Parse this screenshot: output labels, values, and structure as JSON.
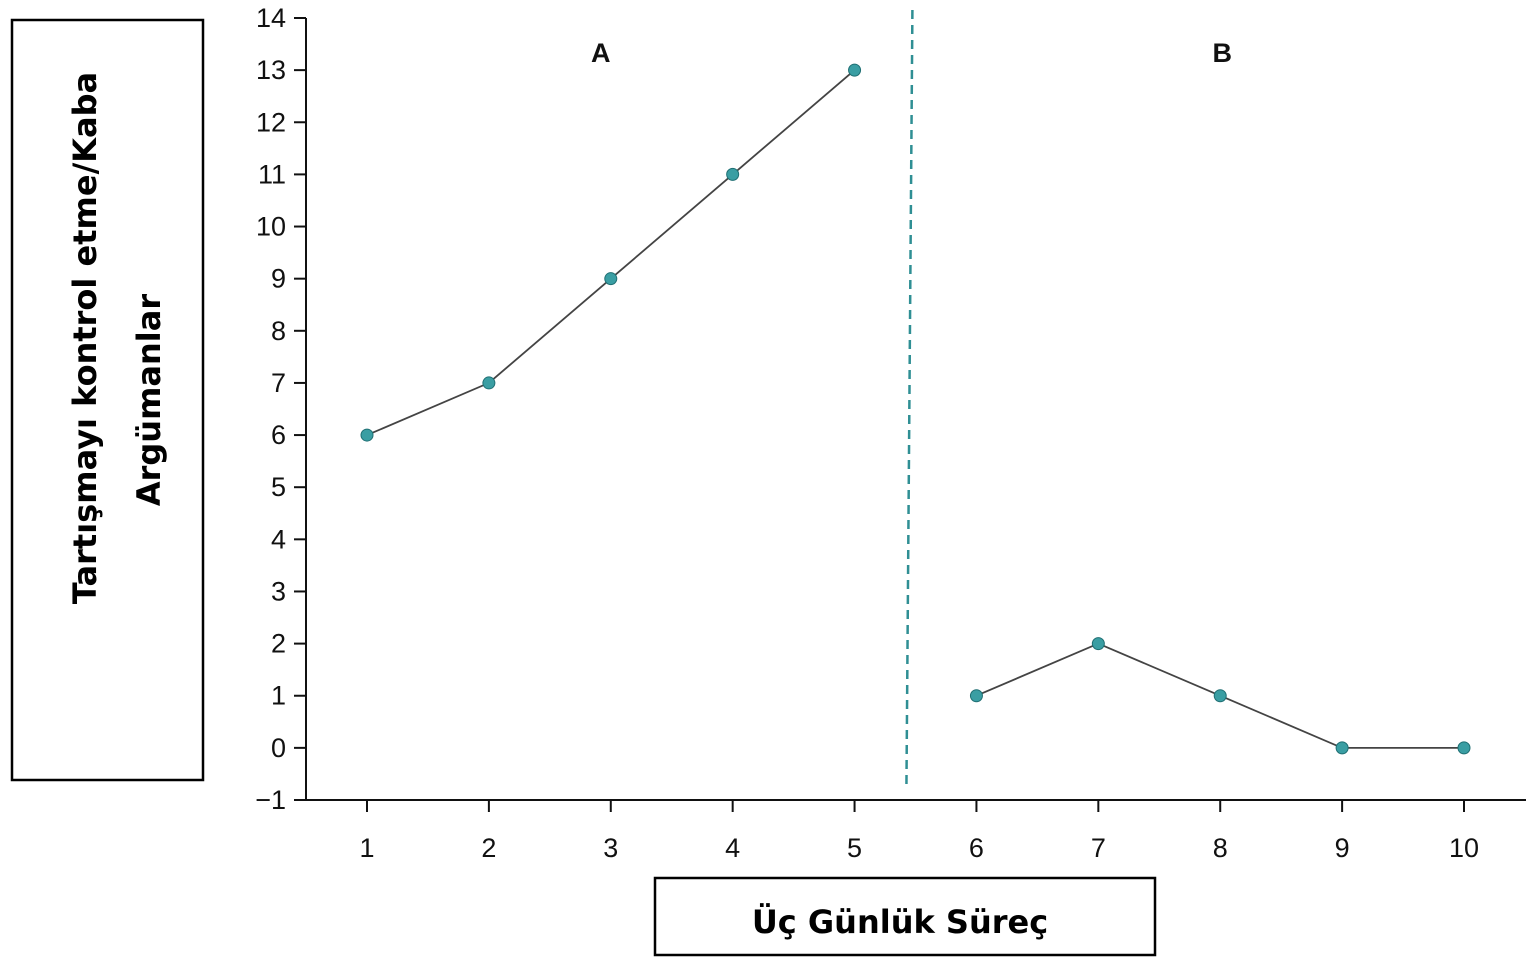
{
  "chart_data": {
    "type": "line",
    "xlabel": "Üç Günlük Süreç",
    "ylabel_lines": [
      "Tartışmayı kontrol etme/Kaba",
      "Argümanlar"
    ],
    "x_ticks": [
      "1",
      "2",
      "3",
      "4",
      "5",
      "6",
      "7",
      "8",
      "9",
      "10"
    ],
    "y_ticks": [
      "−1",
      "0",
      "1",
      "2",
      "3",
      "4",
      "5",
      "6",
      "7",
      "8",
      "9",
      "10",
      "11",
      "12",
      "13",
      "14"
    ],
    "xlim": [
      0.5,
      10.5
    ],
    "ylim": [
      -1,
      14
    ],
    "grid": false,
    "legend": "none",
    "phase_change_x": 5.45,
    "phases": [
      {
        "label": "A",
        "x": [
          1,
          2,
          3,
          4,
          5
        ],
        "y": [
          6,
          7,
          9,
          11,
          13
        ]
      },
      {
        "label": "B",
        "x": [
          6,
          7,
          8,
          9,
          10
        ],
        "y": [
          1,
          2,
          1,
          0,
          0
        ]
      }
    ],
    "colors": {
      "marker": "#3a9ea3",
      "line": "#444444",
      "phase_line": "#2f8f94",
      "axis": "#111111"
    }
  }
}
